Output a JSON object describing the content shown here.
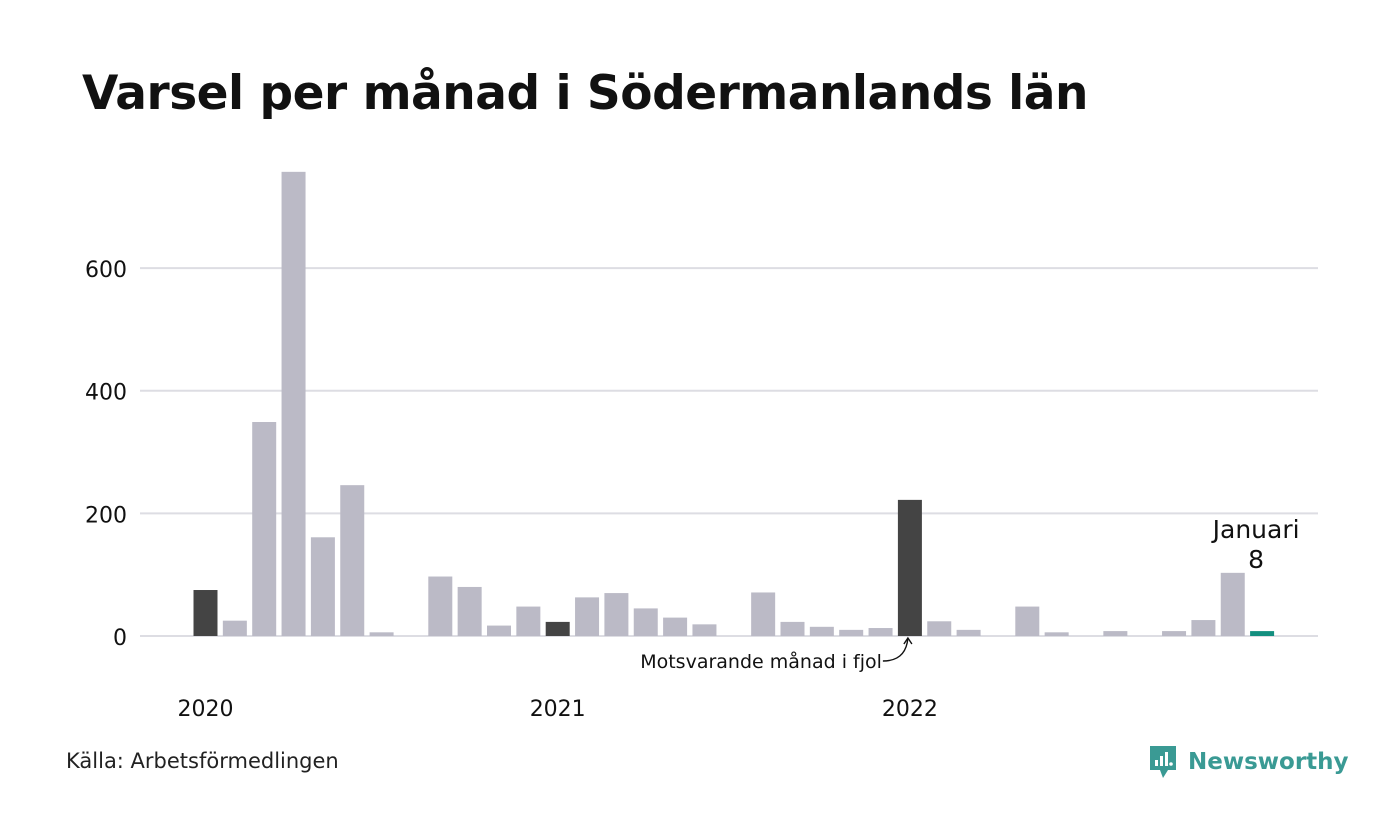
{
  "title": "Varsel per månad i Södermanlands län",
  "source": "Källa: Arbetsförmedlingen",
  "brand": {
    "name": "Newsworthy",
    "icon": "newsworthy-logo-icon"
  },
  "colors": {
    "default_bar": "#bbbac6",
    "highlight_bar": "#444444",
    "current_bar": "#138f7f",
    "grid": "#dddde3",
    "brand": "#3a9a94"
  },
  "chart_data": {
    "type": "bar",
    "title": "Varsel per månad i Södermanlands län",
    "xlabel": "",
    "ylabel": "",
    "ylim": [
      0,
      760
    ],
    "yticks": [
      0,
      200,
      400,
      600
    ],
    "grid": true,
    "x_tick_labels": [
      "2020",
      "2021",
      "2022"
    ],
    "categories": [
      "2020-01",
      "2020-02",
      "2020-03",
      "2020-04",
      "2020-05",
      "2020-06",
      "2020-07",
      "2020-08",
      "2020-09",
      "2020-10",
      "2020-11",
      "2020-12",
      "2021-01",
      "2021-02",
      "2021-03",
      "2021-04",
      "2021-05",
      "2021-06",
      "2021-07",
      "2021-08",
      "2021-09",
      "2021-10",
      "2021-11",
      "2021-12",
      "2022-01",
      "2022-02",
      "2022-03",
      "2022-04",
      "2022-05",
      "2022-06",
      "2022-07",
      "2022-08",
      "2022-09",
      "2022-10",
      "2022-11",
      "2022-12",
      "2023-01"
    ],
    "values": [
      75,
      25,
      349,
      757,
      161,
      246,
      6,
      0,
      97,
      80,
      17,
      48,
      23,
      63,
      70,
      45,
      30,
      19,
      0,
      71,
      23,
      15,
      10,
      13,
      222,
      24,
      10,
      0,
      48,
      6,
      0,
      8,
      0,
      8,
      26,
      103,
      8
    ],
    "highlight": [
      "2020-01",
      "2021-01",
      "2022-01"
    ],
    "current": "2023-01",
    "current_label": "Januari",
    "current_value_label": "8",
    "annotation": {
      "text": "Motsvarande månad i fjol",
      "target": "2022-01"
    }
  }
}
